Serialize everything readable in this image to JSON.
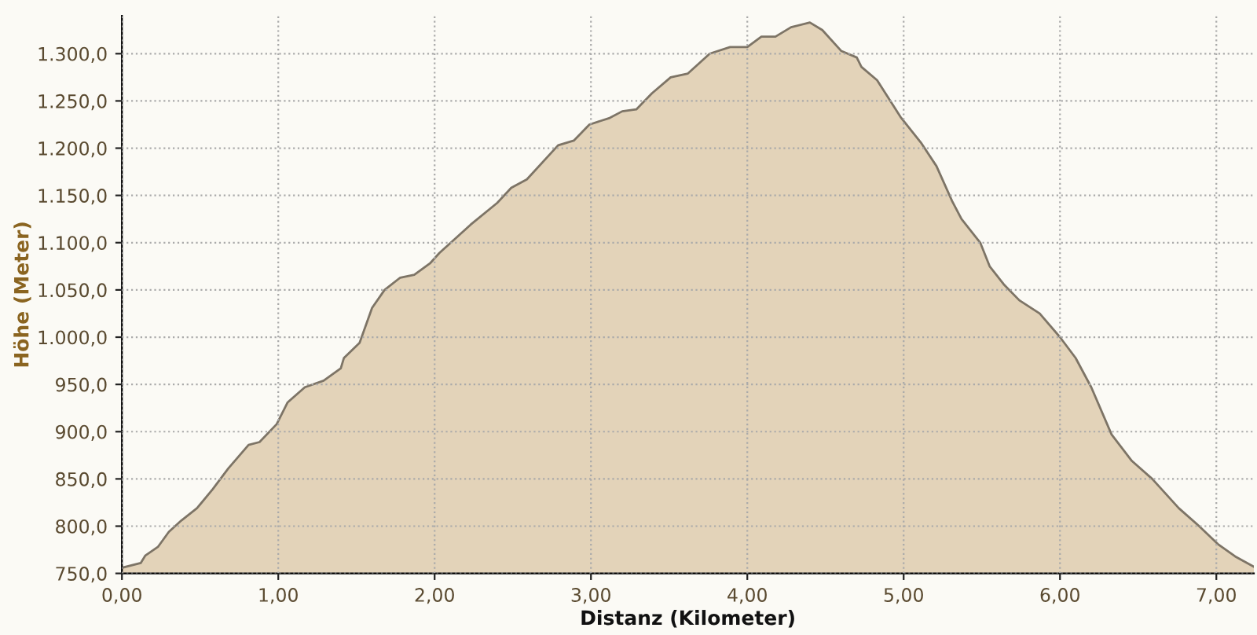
{
  "chart_data": {
    "type": "area",
    "xlabel": "Distanz (Kilometer)",
    "ylabel": "Höhe (Meter)",
    "color": "#e3d3b9",
    "grid": true,
    "xlim": [
      0,
      7.24
    ],
    "ylim": [
      750,
      1340
    ],
    "xticks": [
      {
        "value": 0,
        "label": "0,00"
      },
      {
        "value": 1,
        "label": "1,00"
      },
      {
        "value": 2,
        "label": "2,00"
      },
      {
        "value": 3,
        "label": "3,00"
      },
      {
        "value": 4,
        "label": "4,00"
      },
      {
        "value": 5,
        "label": "5,00"
      },
      {
        "value": 6,
        "label": "6,00"
      },
      {
        "value": 7,
        "label": "7,00"
      }
    ],
    "yticks": [
      {
        "value": 750,
        "label": "750,0"
      },
      {
        "value": 800,
        "label": "800,0"
      },
      {
        "value": 850,
        "label": "850,0"
      },
      {
        "value": 900,
        "label": "900,0"
      },
      {
        "value": 950,
        "label": "950,0"
      },
      {
        "value": 1000,
        "label": "1.000,0"
      },
      {
        "value": 1050,
        "label": "1.050,0"
      },
      {
        "value": 1100,
        "label": "1.100,0"
      },
      {
        "value": 1150,
        "label": "1.150,0"
      },
      {
        "value": 1200,
        "label": "1.200,0"
      },
      {
        "value": 1250,
        "label": "1.250,0"
      },
      {
        "value": 1300,
        "label": "1.300,0"
      }
    ],
    "x": [
      0,
      0.12,
      0.15,
      0.23,
      0.3,
      0.38,
      0.48,
      0.58,
      0.68,
      0.81,
      0.88,
      0.99,
      1.06,
      1.17,
      1.29,
      1.4,
      1.42,
      1.52,
      1.6,
      1.68,
      1.78,
      1.87,
      1.97,
      2.03,
      2.23,
      2.4,
      2.49,
      2.59,
      2.79,
      2.89,
      2.99,
      3.12,
      3.2,
      3.29,
      3.39,
      3.51,
      3.62,
      3.76,
      3.89,
      4.0,
      4.09,
      4.18,
      4.28,
      4.4,
      4.48,
      4.6,
      4.7,
      4.73,
      4.83,
      4.98,
      5.11,
      5.21,
      5.31,
      5.37,
      5.49,
      5.55,
      5.64,
      5.74,
      5.87,
      6.0,
      6.1,
      6.2,
      6.33,
      6.46,
      6.59,
      6.76,
      6.89,
      7.01,
      7.12,
      7.24
    ],
    "values": [
      756,
      761,
      769,
      778,
      794,
      806,
      819,
      839,
      861,
      886,
      889,
      908,
      931,
      947,
      954,
      967,
      978,
      994,
      1031,
      1050,
      1063,
      1066,
      1078,
      1089,
      1119,
      1142,
      1158,
      1167,
      1203,
      1208,
      1225,
      1232,
      1239,
      1241,
      1258,
      1275,
      1279,
      1300,
      1307,
      1307,
      1318,
      1318,
      1328,
      1333,
      1325,
      1303,
      1296,
      1286,
      1272,
      1233,
      1206,
      1181,
      1144,
      1125,
      1100,
      1075,
      1056,
      1039,
      1025,
      1000,
      978,
      947,
      897,
      869,
      850,
      819,
      800,
      781,
      768,
      757
    ]
  }
}
